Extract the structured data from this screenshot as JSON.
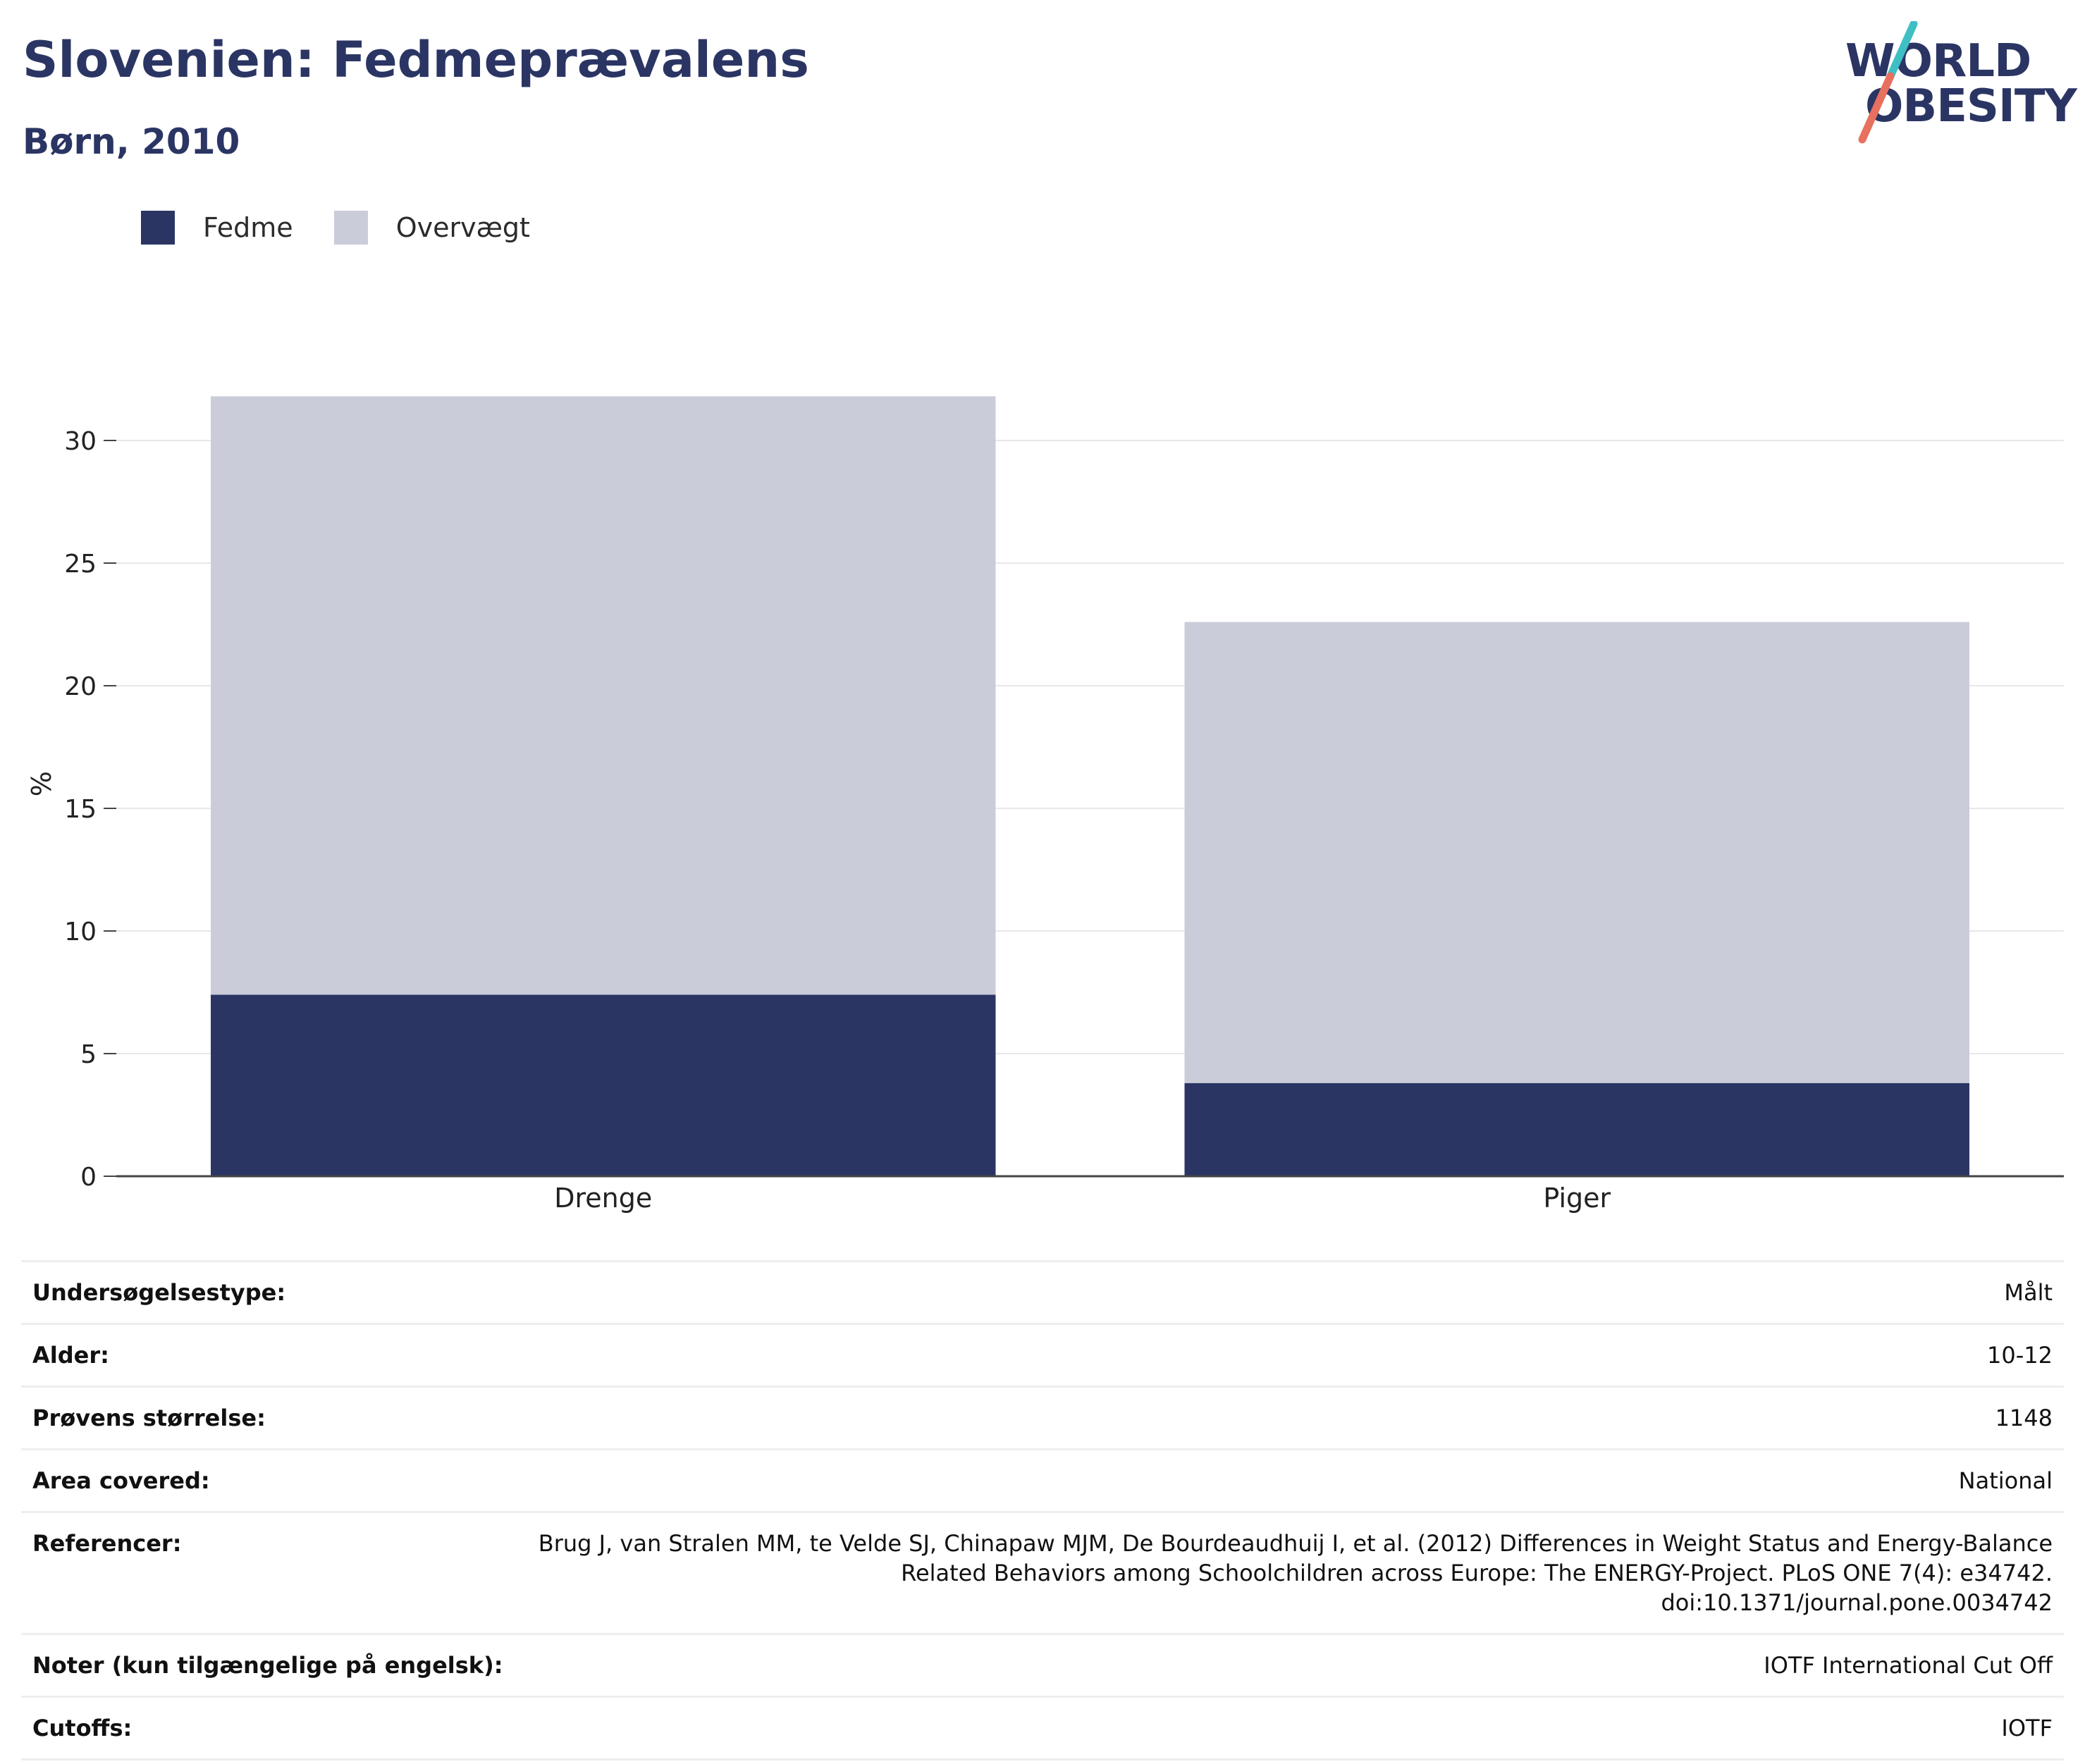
{
  "header": {
    "title": "Slovenien: Fedmeprævalens",
    "subtitle": "Børn, 2010"
  },
  "logo": {
    "line1": "WORLD",
    "line2": "OBESITY"
  },
  "colors": {
    "obesity": "#2b3564",
    "overweight": "#cacdd9",
    "grid": "#e8e8e8",
    "axis": "#444444",
    "logo_teal": "#3fbfc4",
    "logo_coral": "#e8705f"
  },
  "chart_data": {
    "type": "bar",
    "stacked": true,
    "categories": [
      "Drenge",
      "Piger"
    ],
    "series": [
      {
        "name": "Fedme",
        "values": [
          7.4,
          3.8
        ]
      },
      {
        "name": "Overvægt",
        "values": [
          24.4,
          18.8
        ]
      }
    ],
    "ylabel": "%",
    "ylim": [
      0,
      32
    ],
    "yticks": [
      0,
      5,
      10,
      15,
      20,
      25,
      30
    ],
    "grid": true,
    "legend": "top-left"
  },
  "info": {
    "rows": [
      {
        "label": "Undersøgelsestype:",
        "value": "Målt"
      },
      {
        "label": "Alder:",
        "value": "10-12"
      },
      {
        "label": "Prøvens størrelse:",
        "value": "1148"
      },
      {
        "label": "Area covered:",
        "value": "National"
      },
      {
        "label": "Referencer:",
        "value_lines": [
          "Brug J, van Stralen MM, te Velde SJ, Chinapaw MJM, De Bourdeaudhuij I, et al. (2012) Differences in Weight Status and Energy-Balance",
          "Related Behaviors among Schoolchildren across Europe: The ENERGY-Project. PLoS ONE 7(4): e34742.",
          "doi:10.1371/journal.pone.0034742"
        ]
      },
      {
        "label": "Noter (kun tilgængelige på engelsk):",
        "value": "IOTF International Cut Off"
      },
      {
        "label": "Cutoffs:",
        "value": "IOTF"
      }
    ]
  }
}
